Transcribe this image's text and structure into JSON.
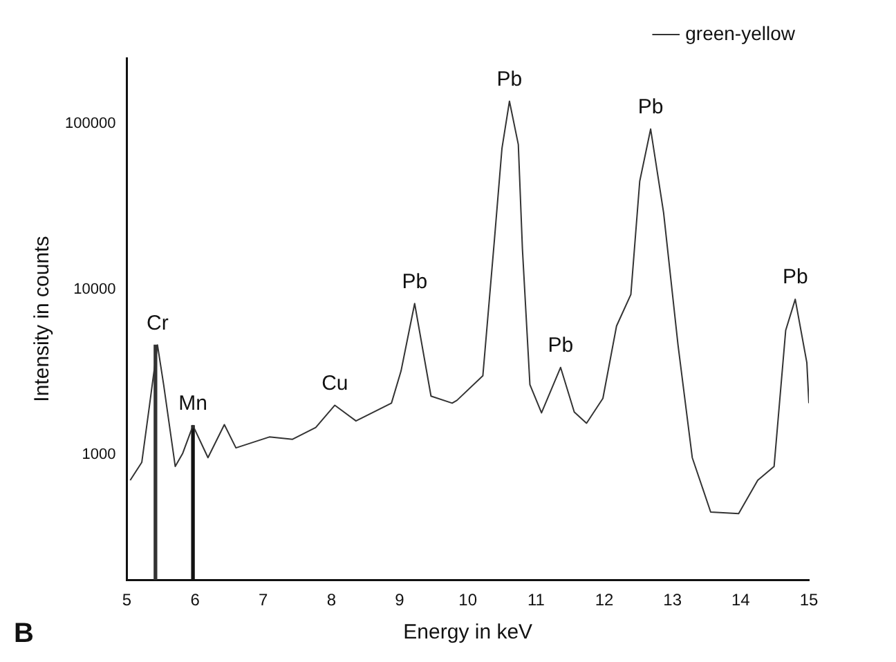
{
  "chart_data": {
    "type": "line",
    "xlabel": "Energy in keV",
    "ylabel": "Intensity in counts",
    "log": "y",
    "grid": false,
    "legend": "top right",
    "marker": "none",
    "line_style": "solid",
    "xlim": [
      5,
      15
    ],
    "xticks": [
      5,
      6,
      7,
      8,
      9,
      10,
      11,
      12,
      13,
      14,
      15
    ],
    "ylim": [
      175,
      250000
    ],
    "yticks": [
      1000,
      10000,
      100000
    ],
    "series": [
      {
        "name": "green-yellow",
        "color": "#333333",
        "x": [
          5.05,
          5.22,
          5.33,
          5.45,
          5.54,
          5.71,
          5.82,
          5.97,
          6.19,
          6.43,
          6.6,
          7.09,
          7.43,
          7.77,
          8.05,
          8.36,
          8.88,
          9.02,
          9.22,
          9.46,
          9.77,
          9.84,
          10.22,
          10.39,
          10.5,
          10.61,
          10.74,
          10.8,
          10.91,
          11.08,
          11.36,
          11.56,
          11.74,
          11.98,
          12.18,
          12.39,
          12.52,
          12.68,
          12.87,
          13.08,
          13.29,
          13.56,
          13.97,
          14.25,
          14.49,
          14.66,
          14.8,
          14.97,
          15.0
        ],
        "values": [
          700,
          900,
          1950,
          4600,
          2650,
          850,
          1020,
          1500,
          960,
          1520,
          1100,
          1280,
          1240,
          1460,
          1990,
          1600,
          2050,
          3200,
          8200,
          2260,
          2050,
          2130,
          3000,
          20000,
          71000,
          137000,
          75000,
          17600,
          2650,
          1790,
          3370,
          1810,
          1550,
          2190,
          6000,
          9300,
          45000,
          93000,
          29000,
          4650,
          960,
          450,
          440,
          700,
          850,
          5650,
          8700,
          3600,
          2050
        ]
      },
      {
        "type": "bar",
        "colors": [
          "#333333",
          "#111111"
        ],
        "x": [
          5.42,
          5.97
        ],
        "values": [
          4600,
          1500
        ]
      }
    ],
    "annotations": [
      {
        "text": "Cr",
        "x": 5.45,
        "y": 4600
      },
      {
        "text": "Mn",
        "x": 5.97,
        "y": 1500
      },
      {
        "text": "Cu",
        "x": 8.05,
        "y": 1990
      },
      {
        "text": "Pb",
        "x": 9.22,
        "y": 8200
      },
      {
        "text": "Pb",
        "x": 10.61,
        "y": 137000
      },
      {
        "text": "Pb",
        "x": 11.36,
        "y": 3370
      },
      {
        "text": "Pb",
        "x": 12.68,
        "y": 93000
      },
      {
        "text": "Pb",
        "x": 14.8,
        "y": 8700
      },
      "B"
    ]
  }
}
